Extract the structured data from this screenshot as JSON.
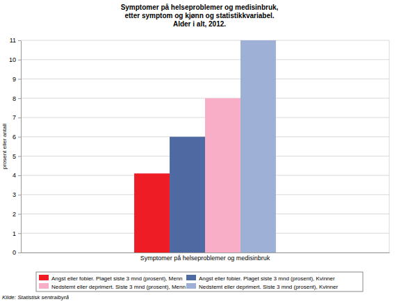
{
  "chart_data": {
    "type": "bar",
    "title": "Symptomer på helseproblemer og medisinbruk,\netter symptom og kjønn og statistikkvariabel.\nAlder i alt, 2012.",
    "y_label": "prosent eller antall",
    "categories": [
      "Symptomer på helseproblemer og medisinbruk"
    ],
    "series": [
      {
        "name": "Angst eller fobier. Plaget siste 3 mnd (prosent), Menn",
        "color": "#ee1c25",
        "values": [
          4.1
        ]
      },
      {
        "name": "Angst eller fobier. Plaget siste 3 mnd (prosent), Kvinner",
        "color": "#4f6aa3",
        "values": [
          6
        ]
      },
      {
        "name": "Nedstemt eller deprimert. Siste 3 mnd (prosent), Menn",
        "color": "#f9aec8",
        "values": [
          8
        ]
      },
      {
        "name": "Nedstemt eller deprimert. Siste 3 mnd (prosent), Kvinner",
        "color": "#9fb0d6",
        "values": [
          11
        ]
      }
    ],
    "ylim": [
      0,
      11
    ],
    "yticks": [
      0,
      1,
      2,
      3,
      4,
      5,
      6,
      7,
      8,
      9,
      10,
      11
    ],
    "grid": true,
    "legend": "bottom",
    "source": "Kilde: Statistisk sentralbyrå"
  }
}
